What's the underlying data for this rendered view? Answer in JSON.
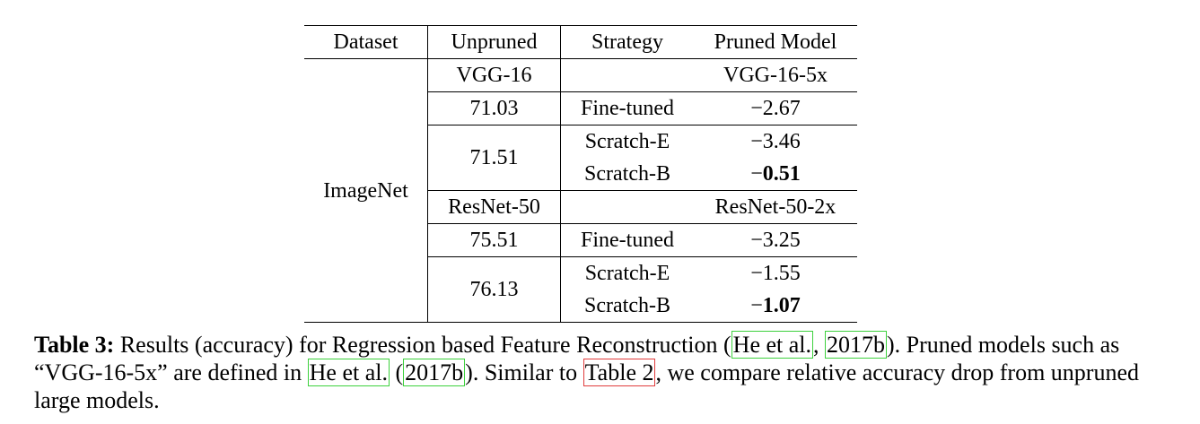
{
  "table": {
    "headers": [
      "Dataset",
      "Unpruned",
      "Strategy",
      "Pruned Model"
    ],
    "dataset": "ImageNet",
    "groups": [
      {
        "unpruned_model": "VGG-16",
        "pruned_model": "VGG-16-5x",
        "rows": [
          {
            "unpruned": "71.03",
            "strategy": "Fine-tuned",
            "sign": "−",
            "value": "2.67",
            "bold": false
          },
          {
            "unpruned": "71.51",
            "strategy": "Scratch-E",
            "sign": "−",
            "value": "3.46",
            "bold": false
          },
          {
            "unpruned": "71.51",
            "strategy": "Scratch-B",
            "sign": "−",
            "value": "0.51",
            "bold": true
          }
        ]
      },
      {
        "unpruned_model": "ResNet-50",
        "pruned_model": "ResNet-50-2x",
        "rows": [
          {
            "unpruned": "75.51",
            "strategy": "Fine-tuned",
            "sign": "−",
            "value": "3.25",
            "bold": false
          },
          {
            "unpruned": "76.13",
            "strategy": "Scratch-E",
            "sign": "−",
            "value": "1.55",
            "bold": false
          },
          {
            "unpruned": "76.13",
            "strategy": "Scratch-B",
            "sign": "−",
            "value": "1.07",
            "bold": true
          }
        ]
      }
    ]
  },
  "caption": {
    "label": "Table 3:",
    "t1": " Results (accuracy) for Regression based Feature Reconstruction (",
    "cite1": "He et al.",
    "t2": ", ",
    "cite1_year": "2017b",
    "t3": "). Pruned models such as “VGG-16-5x” are defined in ",
    "cite2": "He et al.",
    "t4": " (",
    "cite2_year": "2017b",
    "t5": "). Similar to ",
    "ref": "Table 2",
    "t6": ", we compare relative accuracy drop from unpruned large models."
  },
  "colors": {
    "citation_box": "#3dd13d",
    "reference_box": "#e03c3c"
  }
}
